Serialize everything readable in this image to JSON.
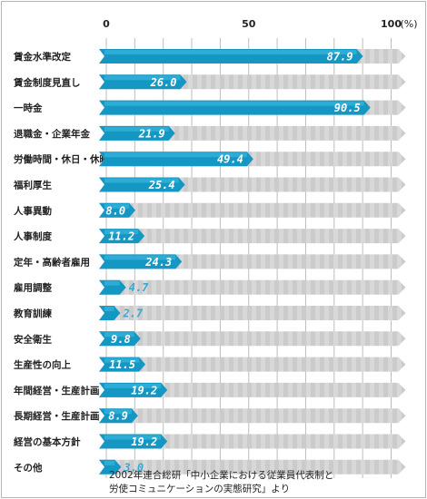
{
  "chart_data": {
    "type": "bar",
    "orientation": "horizontal",
    "categories": [
      "賃金水準改定",
      "賃金制度見直し",
      "一時金",
      "退職金・企業年金",
      "労働時間・休日・休暇",
      "福利厚生",
      "人事異動",
      "人事制度",
      "定年・高齢者雇用",
      "雇用調整",
      "教育訓練",
      "安全衛生",
      "生産性の向上",
      "年間経営・生産計画",
      "長期経営・生産計画",
      "経営の基本方針",
      "その他"
    ],
    "value_labels": [
      "87.9",
      "26.0",
      "90.5",
      "21.9",
      "49.4",
      "25.4",
      "8.0",
      "11.2",
      "24.3",
      "4.7",
      "2.7",
      "9.8",
      "11.5",
      "19.2",
      "8.9",
      "19.2",
      "3.0"
    ],
    "values": [
      87.9,
      26.0,
      90.5,
      21.9,
      49.4,
      25.4,
      8.0,
      11.2,
      24.3,
      4.7,
      2.7,
      9.8,
      11.5,
      19.2,
      8.9,
      19.2,
      3.0
    ],
    "x_ticks": [
      "0",
      "50",
      "100"
    ],
    "x_unit": "(%)",
    "xlim": [
      0,
      100
    ],
    "grid": true,
    "legend": "none",
    "colors": {
      "bar": "#1597c3",
      "bar_light": "#42bde4",
      "track": "#d8d8d8",
      "track_stripe": "#c8c8c8",
      "grid": "#bdbdbd",
      "value_inside": "#ffffff",
      "value_outside": "#3aa8cf"
    }
  },
  "source_note": {
    "line1": "2002年連合総研「中小企業における従業員代表制と",
    "line2": "労使コミュニケーションの実態研究」より"
  }
}
